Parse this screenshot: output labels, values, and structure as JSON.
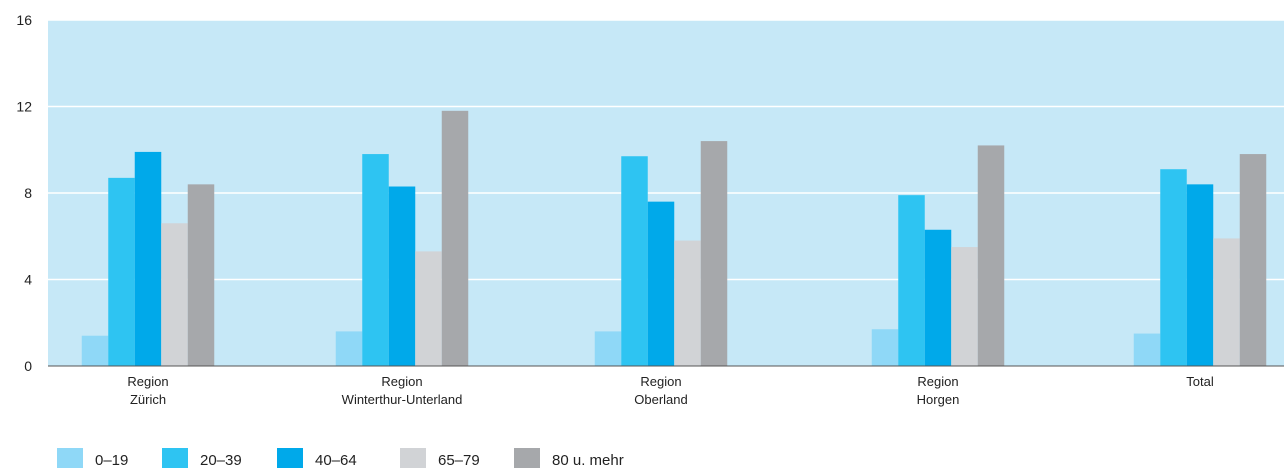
{
  "colors": {
    "plot_background": "#c6e8f7",
    "axis_line": "#555555",
    "grid_line": "#ffffff",
    "series": [
      "#8fd8f7",
      "#2ec4f2",
      "#00a9ea",
      "#d1d3d6",
      "#a6a8ab"
    ]
  },
  "chart_data": {
    "type": "bar",
    "title": "",
    "xlabel": "",
    "ylabel": "",
    "ylim": [
      0,
      16
    ],
    "yticks": [
      "0",
      "4",
      "8",
      "12",
      "16"
    ],
    "grid": true,
    "legend_position": "bottom-left",
    "categories": [
      [
        "Region",
        "Zürich"
      ],
      [
        "Region",
        "Winterthur-Unterland"
      ],
      [
        "Region",
        "Oberland"
      ],
      [
        "Region",
        "Horgen"
      ],
      [
        "Total"
      ]
    ],
    "series": [
      {
        "name": "0–19",
        "values": [
          1.4,
          1.6,
          1.6,
          1.7,
          1.5
        ]
      },
      {
        "name": "20–39",
        "values": [
          8.7,
          9.8,
          9.7,
          7.9,
          9.1
        ]
      },
      {
        "name": "40–64",
        "values": [
          9.9,
          8.3,
          7.6,
          6.3,
          8.4
        ]
      },
      {
        "name": "65–79",
        "values": [
          6.6,
          5.3,
          5.8,
          5.5,
          5.9
        ]
      },
      {
        "name": "80 u. mehr",
        "values": [
          8.4,
          11.8,
          10.4,
          10.2,
          9.8
        ]
      }
    ]
  }
}
